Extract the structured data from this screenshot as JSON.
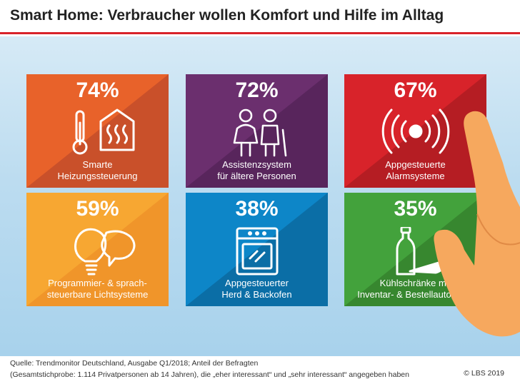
{
  "title": "Smart Home: Verbraucher wollen Komfort und Hilfe im Alltag",
  "source": {
    "line1": "Quelle: Trendmonitor Deutschland, Ausgabe Q1/2018; Anteil der Befragten",
    "line2": "(Gesamtstichprobe: 1.114 Privatpersonen ab 14 Jahren), die „eher interessant“ und „sehr interessant“ angegeben haben"
  },
  "copyright": "© LBS 2019",
  "chart_data": {
    "type": "table",
    "title": "Smart Home: Verbraucher wollen Komfort und Hilfe im Alltag",
    "unit": "%",
    "categories": [
      "Smarte Heizungssteuerung",
      "Assistenzsystem für ältere Personen",
      "Appgesteuerte Alarmsysteme",
      "Programmier- & sprachsteuerbare Lichtsysteme",
      "Appgesteuerter Herd & Backofen",
      "Kühlschränke mit Inventar- & Bestellautomatik"
    ],
    "values": [
      74,
      72,
      67,
      59,
      38,
      35
    ]
  },
  "tiles": [
    {
      "pct": "74%",
      "line1": "Smarte",
      "line2": "Heizungssteuerung",
      "color": "#e8622a",
      "shade": "#c9502a",
      "icon": "thermometer-house-icon"
    },
    {
      "pct": "72%",
      "line1": "Assistenzsystem",
      "line2": "für ältere Personen",
      "color": "#6b2f6e",
      "shade": "#58255c",
      "icon": "elderly-couple-icon"
    },
    {
      "pct": "67%",
      "line1": "Appgesteuerte",
      "line2": "Alarmsysteme",
      "color": "#d8232a",
      "shade": "#b51d23",
      "icon": "alarm-signal-icon"
    },
    {
      "pct": "59%",
      "line1": "Programmier- & sprach-",
      "line2": "steuerbare Lichtsysteme",
      "color": "#f7a732",
      "shade": "#f0952a",
      "icon": "lightbulb-speech-icon"
    },
    {
      "pct": "38%",
      "line1": "Appgesteuerter",
      "line2": "Herd & Backofen",
      "color": "#0d86c8",
      "shade": "#0b6ea6",
      "icon": "oven-icon"
    },
    {
      "pct": "35%",
      "line1": "Kühlschränke mit",
      "line2": "Inventar- & Bestellautomatik",
      "color": "#43a23c",
      "shade": "#37872f",
      "icon": "bottle-carrot-icon"
    }
  ]
}
